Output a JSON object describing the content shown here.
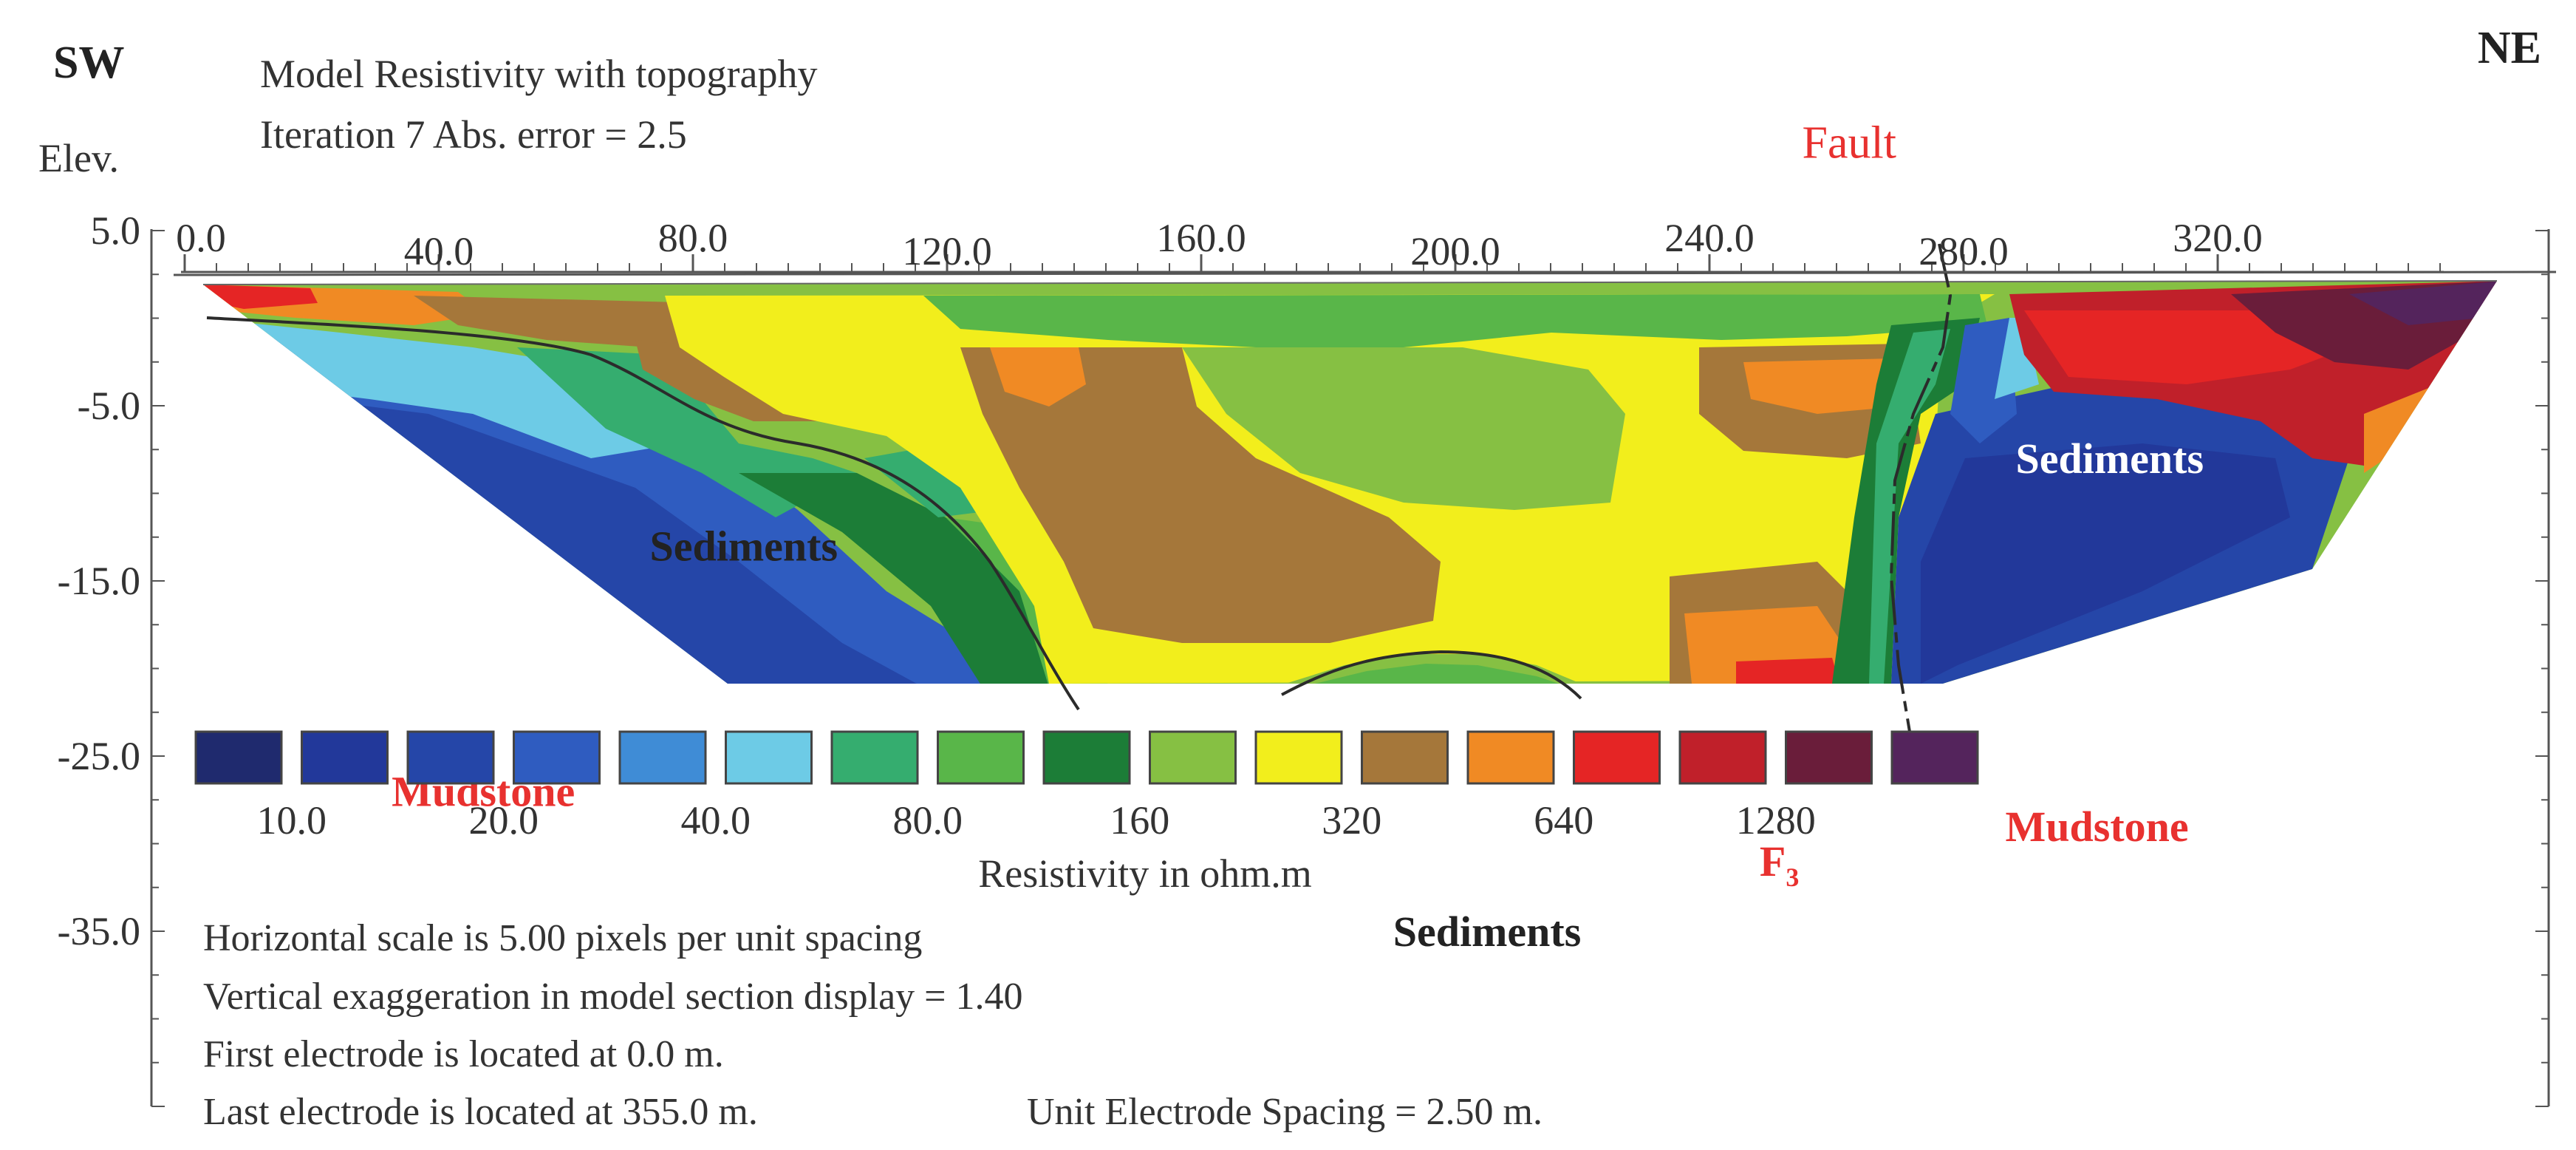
{
  "chart_data": {
    "type": "heatmap",
    "title_line1": "Model Resistivity with topography",
    "title_line2": "Iteration 7 Abs. error = 2.5",
    "direction_left": "SW",
    "direction_right": "NE",
    "ylabel": "Elev.",
    "xlim": [
      0,
      355
    ],
    "ylim": [
      -45,
      5
    ],
    "x_ticks": [
      {
        "value": 0,
        "label": "0.0"
      },
      {
        "value": 40,
        "label": "40.0"
      },
      {
        "value": 80,
        "label": "80.0"
      },
      {
        "value": 120,
        "label": "120.0"
      },
      {
        "value": 160,
        "label": "160.0"
      },
      {
        "value": 200,
        "label": "200.0"
      },
      {
        "value": 240,
        "label": "240.0"
      },
      {
        "value": 280,
        "label": "280.0"
      },
      {
        "value": 320,
        "label": "320.0"
      }
    ],
    "y_ticks": [
      {
        "value": 5,
        "label": "5.0"
      },
      {
        "value": -5,
        "label": "-5.0"
      },
      {
        "value": -15,
        "label": "-15.0"
      },
      {
        "value": -25,
        "label": "-25.0"
      },
      {
        "value": -35,
        "label": "-35.0"
      }
    ],
    "legend": {
      "title": "Resistivity in ohm.m",
      "colors": [
        "#1f2a6e",
        "#22389a",
        "#2546a8",
        "#2f5cc0",
        "#3f8cd6",
        "#6dcbe6",
        "#35ad6f",
        "#59b649",
        "#1c7d37",
        "#86c043",
        "#f2ee1c",
        "#a5773a",
        "#f08a24",
        "#e52525",
        "#c0202a",
        "#6a1d3a",
        "#54245c"
      ],
      "labels": [
        "10.0",
        "20.0",
        "40.0",
        "80.0",
        "160",
        "320",
        "640",
        "1280"
      ]
    },
    "annotations": [
      {
        "text": "Fault",
        "x": 262,
        "y": 10,
        "color": "#e8312f"
      },
      {
        "text": "Sediments",
        "x": 88,
        "y": -13,
        "color": "#222222"
      },
      {
        "text": "Sediments",
        "x": 205,
        "y": -35,
        "color": "#222222"
      },
      {
        "text": "Sediments",
        "x": 303,
        "y": -8,
        "color": "#ffffff"
      },
      {
        "text": "Mudstone",
        "x": 47,
        "y": -27,
        "color": "#e8312f"
      },
      {
        "text": "Mudstone",
        "x": 301,
        "y": -29,
        "color": "#e8312f"
      },
      {
        "text": "F",
        "sub": "3",
        "x": 251,
        "y": -31,
        "color": "#e8312f"
      }
    ],
    "footer": [
      "Horizontal scale is 5.00 pixels per unit spacing",
      "Vertical exaggeration in model section display = 1.40",
      "First electrode is located at 0.0 m.",
      "Last electrode is located at 355.0 m."
    ],
    "footer_extra": "Unit Electrode Spacing = 2.50 m."
  }
}
